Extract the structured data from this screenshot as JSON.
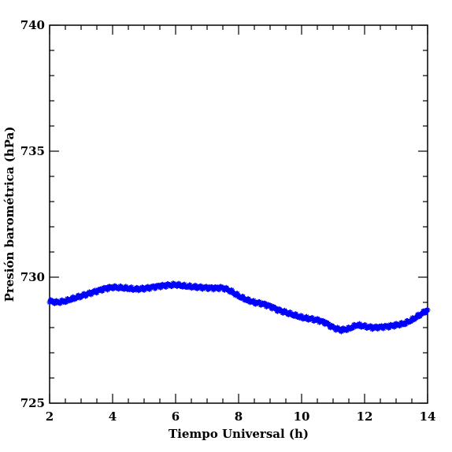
{
  "chart_data": {
    "type": "scatter",
    "xlabel": "Tiempo Universal (h)",
    "ylabel": "Presión barométrica (hPa)",
    "xlim": [
      2,
      14
    ],
    "ylim": [
      725,
      740
    ],
    "xticks": [
      2,
      4,
      6,
      8,
      10,
      12,
      14
    ],
    "yticks": [
      725,
      730,
      735,
      740
    ],
    "grid": false,
    "marker": "asterisk",
    "series": [
      {
        "color": "#0000ff",
        "x": [
          2.0,
          2.25,
          2.5,
          2.75,
          3.0,
          3.25,
          3.5,
          3.75,
          4.0,
          4.25,
          4.5,
          4.75,
          5.0,
          5.25,
          5.5,
          5.75,
          6.0,
          6.25,
          6.5,
          6.75,
          7.0,
          7.25,
          7.5,
          7.75,
          8.0,
          8.25,
          8.5,
          8.75,
          9.0,
          9.25,
          9.5,
          9.75,
          10.0,
          10.25,
          10.5,
          10.75,
          11.0,
          11.25,
          11.5,
          11.75,
          12.0,
          12.25,
          12.5,
          12.75,
          13.0,
          13.25,
          13.5,
          13.75,
          14.0
        ],
        "y": [
          729.05,
          729.0,
          729.05,
          729.15,
          729.25,
          729.35,
          729.45,
          729.55,
          729.6,
          729.58,
          729.55,
          729.52,
          729.55,
          729.6,
          729.65,
          729.68,
          729.7,
          729.65,
          729.62,
          729.6,
          729.58,
          729.57,
          729.58,
          729.45,
          729.25,
          729.1,
          729.0,
          728.95,
          728.85,
          728.7,
          728.6,
          728.5,
          728.4,
          728.35,
          728.3,
          728.2,
          728.0,
          727.9,
          727.95,
          728.1,
          728.05,
          728.0,
          728.02,
          728.05,
          728.1,
          728.15,
          728.3,
          728.5,
          728.7
        ]
      }
    ]
  }
}
